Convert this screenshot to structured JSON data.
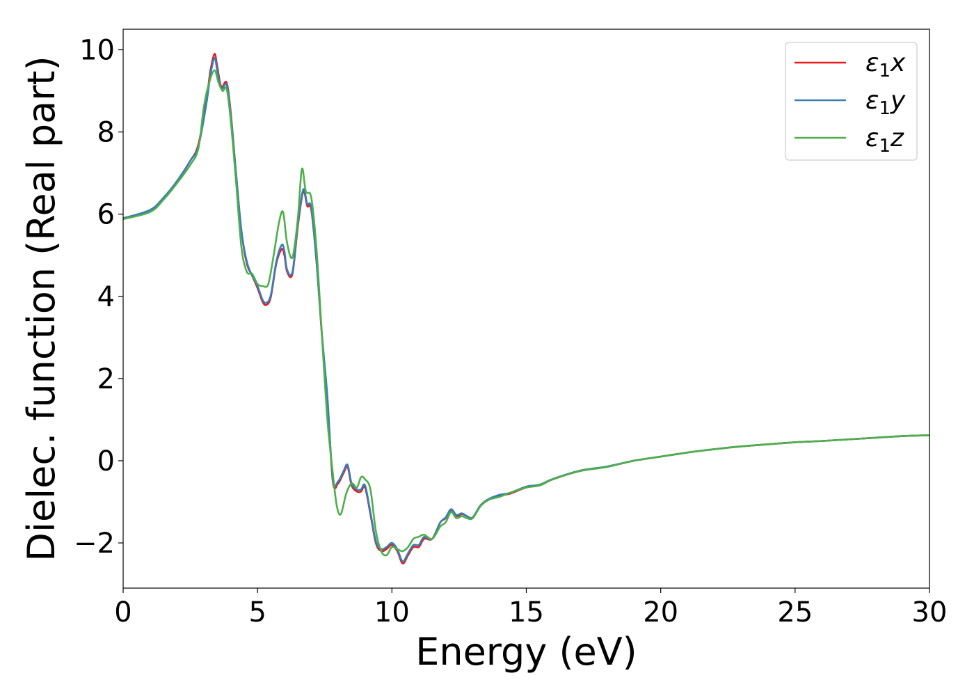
{
  "chart_data": {
    "type": "line",
    "xlabel": "Energy (eV)",
    "ylabel": "Dielec. function (Real part)",
    "xlim": [
      0,
      30
    ],
    "ylim": [
      -3.1,
      10.5
    ],
    "xticks": [
      0,
      5,
      10,
      15,
      20,
      25,
      30
    ],
    "xtick_labels": [
      "0",
      "5",
      "10",
      "15",
      "20",
      "25",
      "30"
    ],
    "yticks": [
      -2,
      0,
      2,
      4,
      6,
      8,
      10
    ],
    "ytick_labels": [
      "−2",
      "0",
      "2",
      "4",
      "6",
      "8",
      "10"
    ],
    "grid": false,
    "legend_position": "top-right",
    "series": [
      {
        "name": "ε₁x",
        "label_base": "ε",
        "label_sub": "1",
        "label_var": "x",
        "color": "#e41a1c",
        "x": [
          0,
          1,
          1.5,
          2,
          2.5,
          2.8,
          3.1,
          3.25,
          3.4,
          3.5,
          3.65,
          3.85,
          4.0,
          4.2,
          4.4,
          4.6,
          4.8,
          5.0,
          5.2,
          5.35,
          5.5,
          5.7,
          5.9,
          6.0,
          6.1,
          6.3,
          6.5,
          6.7,
          6.85,
          7.0,
          7.2,
          7.4,
          7.6,
          7.8,
          8.0,
          8.2,
          8.35,
          8.5,
          8.7,
          8.85,
          9.0,
          9.2,
          9.4,
          9.6,
          9.8,
          10.0,
          10.2,
          10.4,
          10.6,
          10.8,
          11.0,
          11.2,
          11.5,
          11.8,
          12.0,
          12.2,
          12.4,
          12.6,
          12.8,
          13.0,
          13.3,
          13.6,
          14.0,
          14.4,
          15.0,
          15.5,
          16.0,
          17.0,
          18.0,
          19.0,
          20.0,
          21.0,
          22.0,
          23.0,
          24.0,
          25.0,
          26.0,
          27.0,
          28.0,
          29.0,
          30.0
        ],
        "y": [
          5.9,
          6.1,
          6.4,
          6.8,
          7.3,
          7.7,
          8.8,
          9.5,
          9.9,
          9.6,
          9.1,
          9.2,
          8.5,
          7.0,
          5.6,
          4.8,
          4.5,
          4.2,
          3.85,
          3.8,
          4.0,
          4.8,
          5.15,
          5.0,
          4.6,
          4.55,
          5.7,
          6.55,
          6.2,
          6.1,
          4.8,
          3.0,
          1.5,
          -0.5,
          -0.55,
          -0.3,
          -0.15,
          -0.6,
          -0.75,
          -0.75,
          -0.65,
          -1.3,
          -2.0,
          -2.2,
          -2.15,
          -2.05,
          -2.2,
          -2.5,
          -2.3,
          -2.1,
          -2.1,
          -1.9,
          -1.9,
          -1.5,
          -1.4,
          -1.2,
          -1.35,
          -1.3,
          -1.35,
          -1.4,
          -1.1,
          -0.95,
          -0.85,
          -0.8,
          -0.65,
          -0.6,
          -0.45,
          -0.25,
          -0.15,
          0.0,
          0.1,
          0.2,
          0.28,
          0.35,
          0.4,
          0.45,
          0.48,
          0.52,
          0.56,
          0.6,
          0.62
        ]
      },
      {
        "name": "ε₁y",
        "label_base": "ε",
        "label_sub": "1",
        "label_var": "y",
        "color": "#377eb8",
        "x": [
          0,
          1,
          1.5,
          2,
          2.5,
          2.8,
          3.1,
          3.25,
          3.4,
          3.5,
          3.65,
          3.85,
          4.0,
          4.2,
          4.4,
          4.6,
          4.8,
          5.0,
          5.2,
          5.35,
          5.5,
          5.7,
          5.9,
          6.0,
          6.1,
          6.3,
          6.5,
          6.7,
          6.85,
          7.0,
          7.2,
          7.4,
          7.6,
          7.8,
          8.0,
          8.2,
          8.35,
          8.5,
          8.7,
          8.85,
          9.0,
          9.2,
          9.4,
          9.6,
          9.8,
          10.0,
          10.2,
          10.4,
          10.6,
          10.8,
          11.0,
          11.2,
          11.5,
          11.8,
          12.0,
          12.2,
          12.4,
          12.6,
          12.8,
          13.0,
          13.3,
          13.6,
          14.0,
          14.4,
          15.0,
          15.5,
          16.0,
          17.0,
          18.0,
          19.0,
          20.0,
          21.0,
          22.0,
          23.0,
          24.0,
          25.0,
          26.0,
          27.0,
          28.0,
          29.0,
          30.0
        ],
        "y": [
          5.9,
          6.1,
          6.4,
          6.8,
          7.3,
          7.65,
          8.7,
          9.4,
          9.8,
          9.5,
          9.05,
          9.15,
          8.45,
          7.0,
          5.6,
          4.85,
          4.5,
          4.25,
          3.9,
          3.85,
          4.05,
          4.85,
          5.25,
          5.1,
          4.65,
          4.6,
          5.75,
          6.6,
          6.25,
          6.15,
          4.8,
          3.05,
          1.55,
          -0.45,
          -0.5,
          -0.25,
          -0.1,
          -0.55,
          -0.7,
          -0.7,
          -0.6,
          -1.25,
          -1.95,
          -2.15,
          -2.1,
          -2.0,
          -2.15,
          -2.45,
          -2.25,
          -2.05,
          -2.05,
          -1.85,
          -1.9,
          -1.5,
          -1.38,
          -1.18,
          -1.32,
          -1.28,
          -1.35,
          -1.38,
          -1.08,
          -0.93,
          -0.83,
          -0.78,
          -0.63,
          -0.58,
          -0.44,
          -0.24,
          -0.14,
          0.0,
          0.1,
          0.2,
          0.28,
          0.35,
          0.4,
          0.45,
          0.48,
          0.52,
          0.56,
          0.6,
          0.62
        ]
      },
      {
        "name": "ε₁z",
        "label_base": "ε",
        "label_sub": "1",
        "label_var": "z",
        "color": "#4daf4a",
        "x": [
          0,
          1,
          1.5,
          2,
          2.5,
          2.8,
          3.0,
          3.2,
          3.4,
          3.55,
          3.7,
          3.85,
          4.0,
          4.2,
          4.4,
          4.6,
          4.8,
          5.0,
          5.2,
          5.4,
          5.6,
          5.8,
          5.95,
          6.1,
          6.3,
          6.5,
          6.65,
          6.8,
          7.0,
          7.2,
          7.4,
          7.6,
          7.8,
          7.95,
          8.1,
          8.3,
          8.5,
          8.7,
          8.85,
          9.0,
          9.2,
          9.4,
          9.6,
          9.8,
          10.0,
          10.2,
          10.4,
          10.6,
          10.8,
          11.0,
          11.2,
          11.5,
          11.8,
          12.0,
          12.2,
          12.4,
          12.6,
          12.8,
          13.0,
          13.3,
          13.6,
          14.0,
          14.4,
          15.0,
          15.5,
          16.0,
          17.0,
          18.0,
          19.0,
          20.0,
          21.0,
          22.0,
          23.0,
          24.0,
          25.0,
          26.0,
          27.0,
          28.0,
          29.0,
          30.0
        ],
        "y": [
          5.88,
          6.05,
          6.35,
          6.75,
          7.2,
          7.6,
          8.6,
          9.2,
          9.5,
          9.2,
          9.0,
          9.05,
          8.3,
          6.8,
          5.2,
          4.6,
          4.55,
          4.3,
          4.25,
          4.3,
          5.0,
          5.8,
          6.05,
          5.3,
          4.95,
          5.9,
          7.1,
          6.55,
          6.4,
          5.1,
          3.0,
          1.0,
          -0.3,
          -1.1,
          -1.3,
          -0.8,
          -0.55,
          -0.65,
          -0.4,
          -0.45,
          -0.7,
          -1.7,
          -2.2,
          -2.3,
          -2.1,
          -2.15,
          -2.2,
          -2.1,
          -1.9,
          -1.85,
          -1.8,
          -1.9,
          -1.6,
          -1.5,
          -1.25,
          -1.4,
          -1.35,
          -1.4,
          -1.4,
          -1.1,
          -0.95,
          -0.88,
          -0.78,
          -0.65,
          -0.6,
          -0.45,
          -0.25,
          -0.15,
          0.0,
          0.1,
          0.2,
          0.28,
          0.35,
          0.4,
          0.45,
          0.48,
          0.52,
          0.56,
          0.6,
          0.62
        ]
      }
    ]
  }
}
